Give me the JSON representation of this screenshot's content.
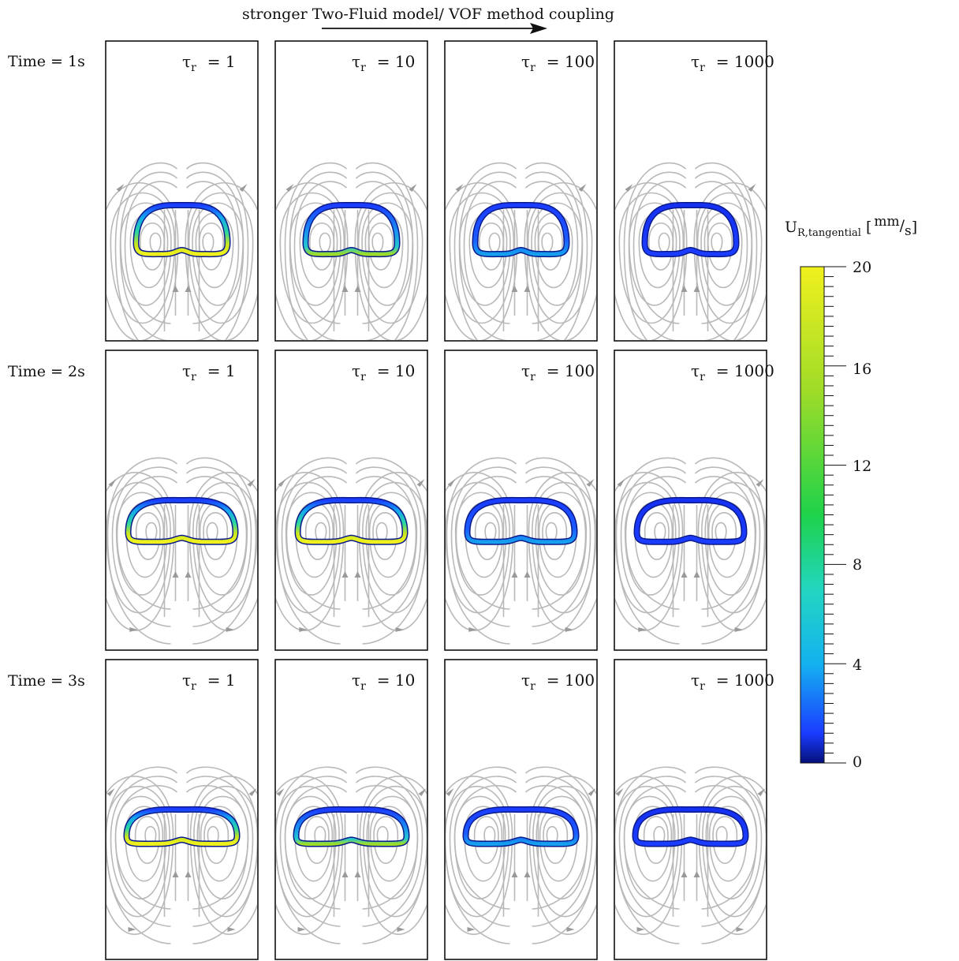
{
  "header": {
    "caption": "stronger Two-Fluid model/ VOF method coupling"
  },
  "rows": [
    {
      "label": "Time = 1s"
    },
    {
      "label": "Time = 2s"
    },
    {
      "label": "Time = 3s"
    }
  ],
  "columns": [
    {
      "symbol": "τ",
      "subscript": "r",
      "value": "= 1"
    },
    {
      "symbol": "τ",
      "subscript": "r",
      "value": "= 10"
    },
    {
      "symbol": "τ",
      "subscript": "r",
      "value": "= 100"
    },
    {
      "symbol": "τ",
      "subscript": "r",
      "value": "= 1000"
    }
  ],
  "colorbar": {
    "title_main": "U",
    "title_sub": "R,tangential",
    "unit_open": "[",
    "unit_num": "mm",
    "unit_slash": "/",
    "unit_den": "s",
    "unit_close": "]",
    "ticks": [
      "20",
      "16",
      "12",
      "8",
      "4",
      "0"
    ],
    "range": [
      0,
      20
    ],
    "colors": [
      "#05107a",
      "#1b3cff",
      "#14b2f0",
      "#22d6c0",
      "#1ed24a",
      "#9fdc28",
      "#f0f01e"
    ]
  },
  "panel_intensity": [
    [
      0.95,
      0.65,
      0.35,
      0.1
    ],
    [
      1.0,
      0.85,
      0.3,
      0.08
    ],
    [
      1.0,
      0.6,
      0.25,
      0.08
    ]
  ]
}
